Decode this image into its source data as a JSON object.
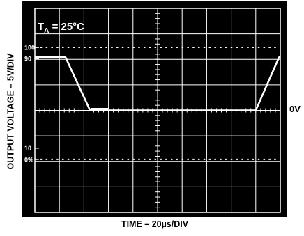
{
  "chart_data": {
    "type": "line",
    "annotation_ta": {
      "prefix": "T",
      "sub": "A",
      "suffix": " = 25°C"
    },
    "xlabel": "TIME – 20µs/DIV",
    "ylabel": "OUTPUT VOLTAGE – 5V/DIV",
    "zero_label": "0V",
    "y_tick_labels": [
      {
        "label": "100",
        "value": 100
      },
      {
        "label": "90",
        "value": 90
      },
      {
        "label": "10",
        "value": 10
      },
      {
        "label": "0%",
        "value": 0
      }
    ],
    "xlim": [
      0,
      10
    ],
    "ylim": [
      0,
      8
    ],
    "divisions": {
      "x": 10,
      "y": 8
    },
    "grid": true,
    "series": [
      {
        "x": [
          0,
          1.25,
          2.25,
          3.0,
          9.0,
          9.95,
          10
        ],
        "y": [
          6.08,
          6.08,
          4.0,
          4.0,
          4.0,
          6.08,
          6.08
        ]
      }
    ],
    "colors": {
      "screen": "#000000",
      "grid": "#ffffff",
      "trace": "#ffffff",
      "text": "#000000"
    }
  }
}
